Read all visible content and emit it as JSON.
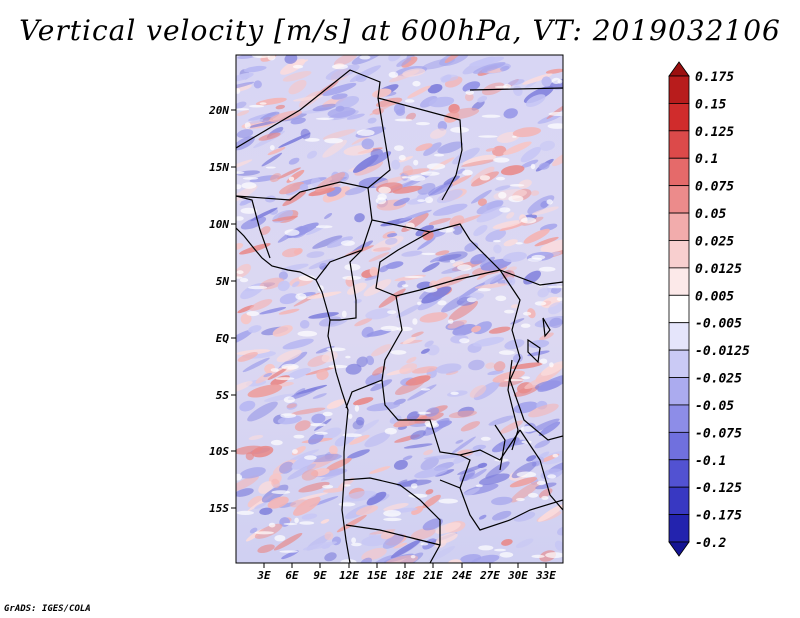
{
  "title": "Vertical velocity [m/s] at 600hPa, VT: 2019032106",
  "footer": "GrADS: IGES/COLA",
  "map": {
    "variable": "Vertical velocity",
    "units": "m/s",
    "level": "600hPa",
    "valid_time": "2019032106",
    "lon_labels": [
      "3E",
      "6E",
      "9E",
      "12E",
      "15E",
      "18E",
      "21E",
      "24E",
      "27E",
      "30E",
      "33E"
    ],
    "lat_labels": [
      "20N",
      "15N",
      "10N",
      "5N",
      "EQ",
      "5S",
      "10S",
      "15S"
    ]
  },
  "colorbar": {
    "levels": [
      "0.175",
      "0.15",
      "0.125",
      "0.1",
      "0.075",
      "0.05",
      "0.025",
      "0.0125",
      "0.005",
      "-0.005",
      "-0.0125",
      "-0.025",
      "-0.05",
      "-0.075",
      "-0.1",
      "-0.125",
      "-0.175",
      "-0.2"
    ],
    "colors": [
      "#9b1010",
      "#b81c1c",
      "#d02c2c",
      "#dc4a4a",
      "#e56a6a",
      "#ec8b8b",
      "#f2acac",
      "#f8cfcf",
      "#fce9e9",
      "#ffffff",
      "#e5e5fb",
      "#cacaf5",
      "#ababef",
      "#8d8de8",
      "#7070de",
      "#5252d2",
      "#3838c2",
      "#2323ae",
      "#141494"
    ]
  }
}
